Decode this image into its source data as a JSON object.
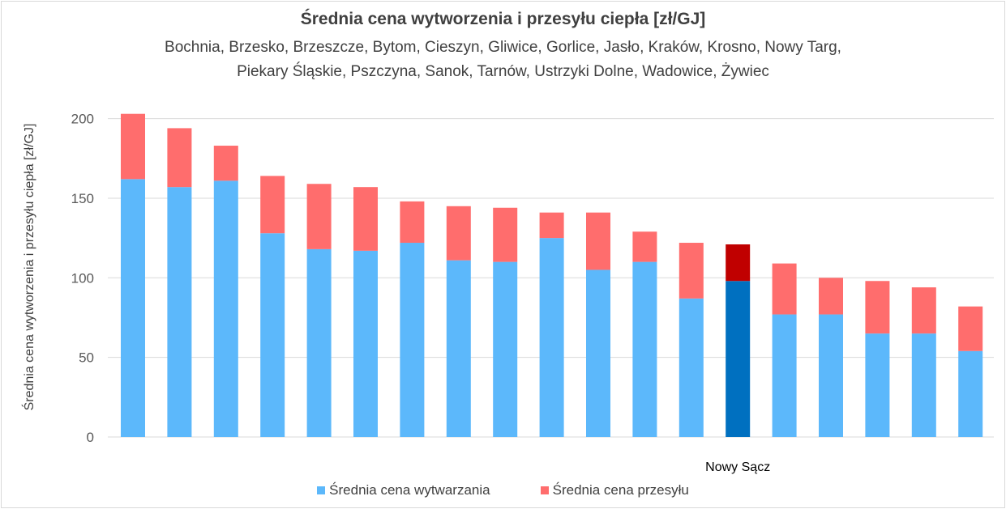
{
  "chart_data": {
    "type": "bar",
    "stacked": true,
    "title": "Średnia cena wytworzenia i przesyłu ciepła [zł/GJ]",
    "subtitle_lines": [
      "Bochnia, Brzesko,  Brzeszcze,  Bytom, Cieszyn, Gliwice, Gorlice, Jasło, Kraków, Krosno, Nowy Targ,",
      "Piekary Śląskie, Pszczyna, Sanok, Tarnów, Ustrzyki Dolne, Wadowice, Żywiec"
    ],
    "xlabel": "",
    "ylabel": "Średnia cena wytworzenia i przesyłu ciepła [zł/GJ]",
    "ylim": [
      0,
      210
    ],
    "yticks": [
      0,
      50,
      100,
      150,
      200
    ],
    "grid": true,
    "legend_position": "bottom",
    "categories": [
      "",
      "",
      "",
      "",
      "",
      "",
      "",
      "",
      "",
      "",
      "",
      "",
      "",
      "Nowy Sącz",
      "",
      "",
      "",
      "",
      ""
    ],
    "highlight_index": 13,
    "series": [
      {
        "name": "Średnia cena wytwarzania",
        "color": "#5CB8FB",
        "highlight_color": "#0070C0",
        "values": [
          162,
          157,
          161,
          128,
          118,
          117,
          122,
          111,
          110,
          125,
          105,
          110,
          87,
          98,
          77,
          77,
          65,
          65,
          54
        ]
      },
      {
        "name": "Średnia cena przesyłu",
        "color": "#FF6D6D",
        "highlight_color": "#C00000",
        "values": [
          41,
          37,
          22,
          36,
          41,
          40,
          26,
          34,
          34,
          16,
          36,
          19,
          35,
          23,
          32,
          23,
          33,
          29,
          28
        ]
      }
    ]
  }
}
